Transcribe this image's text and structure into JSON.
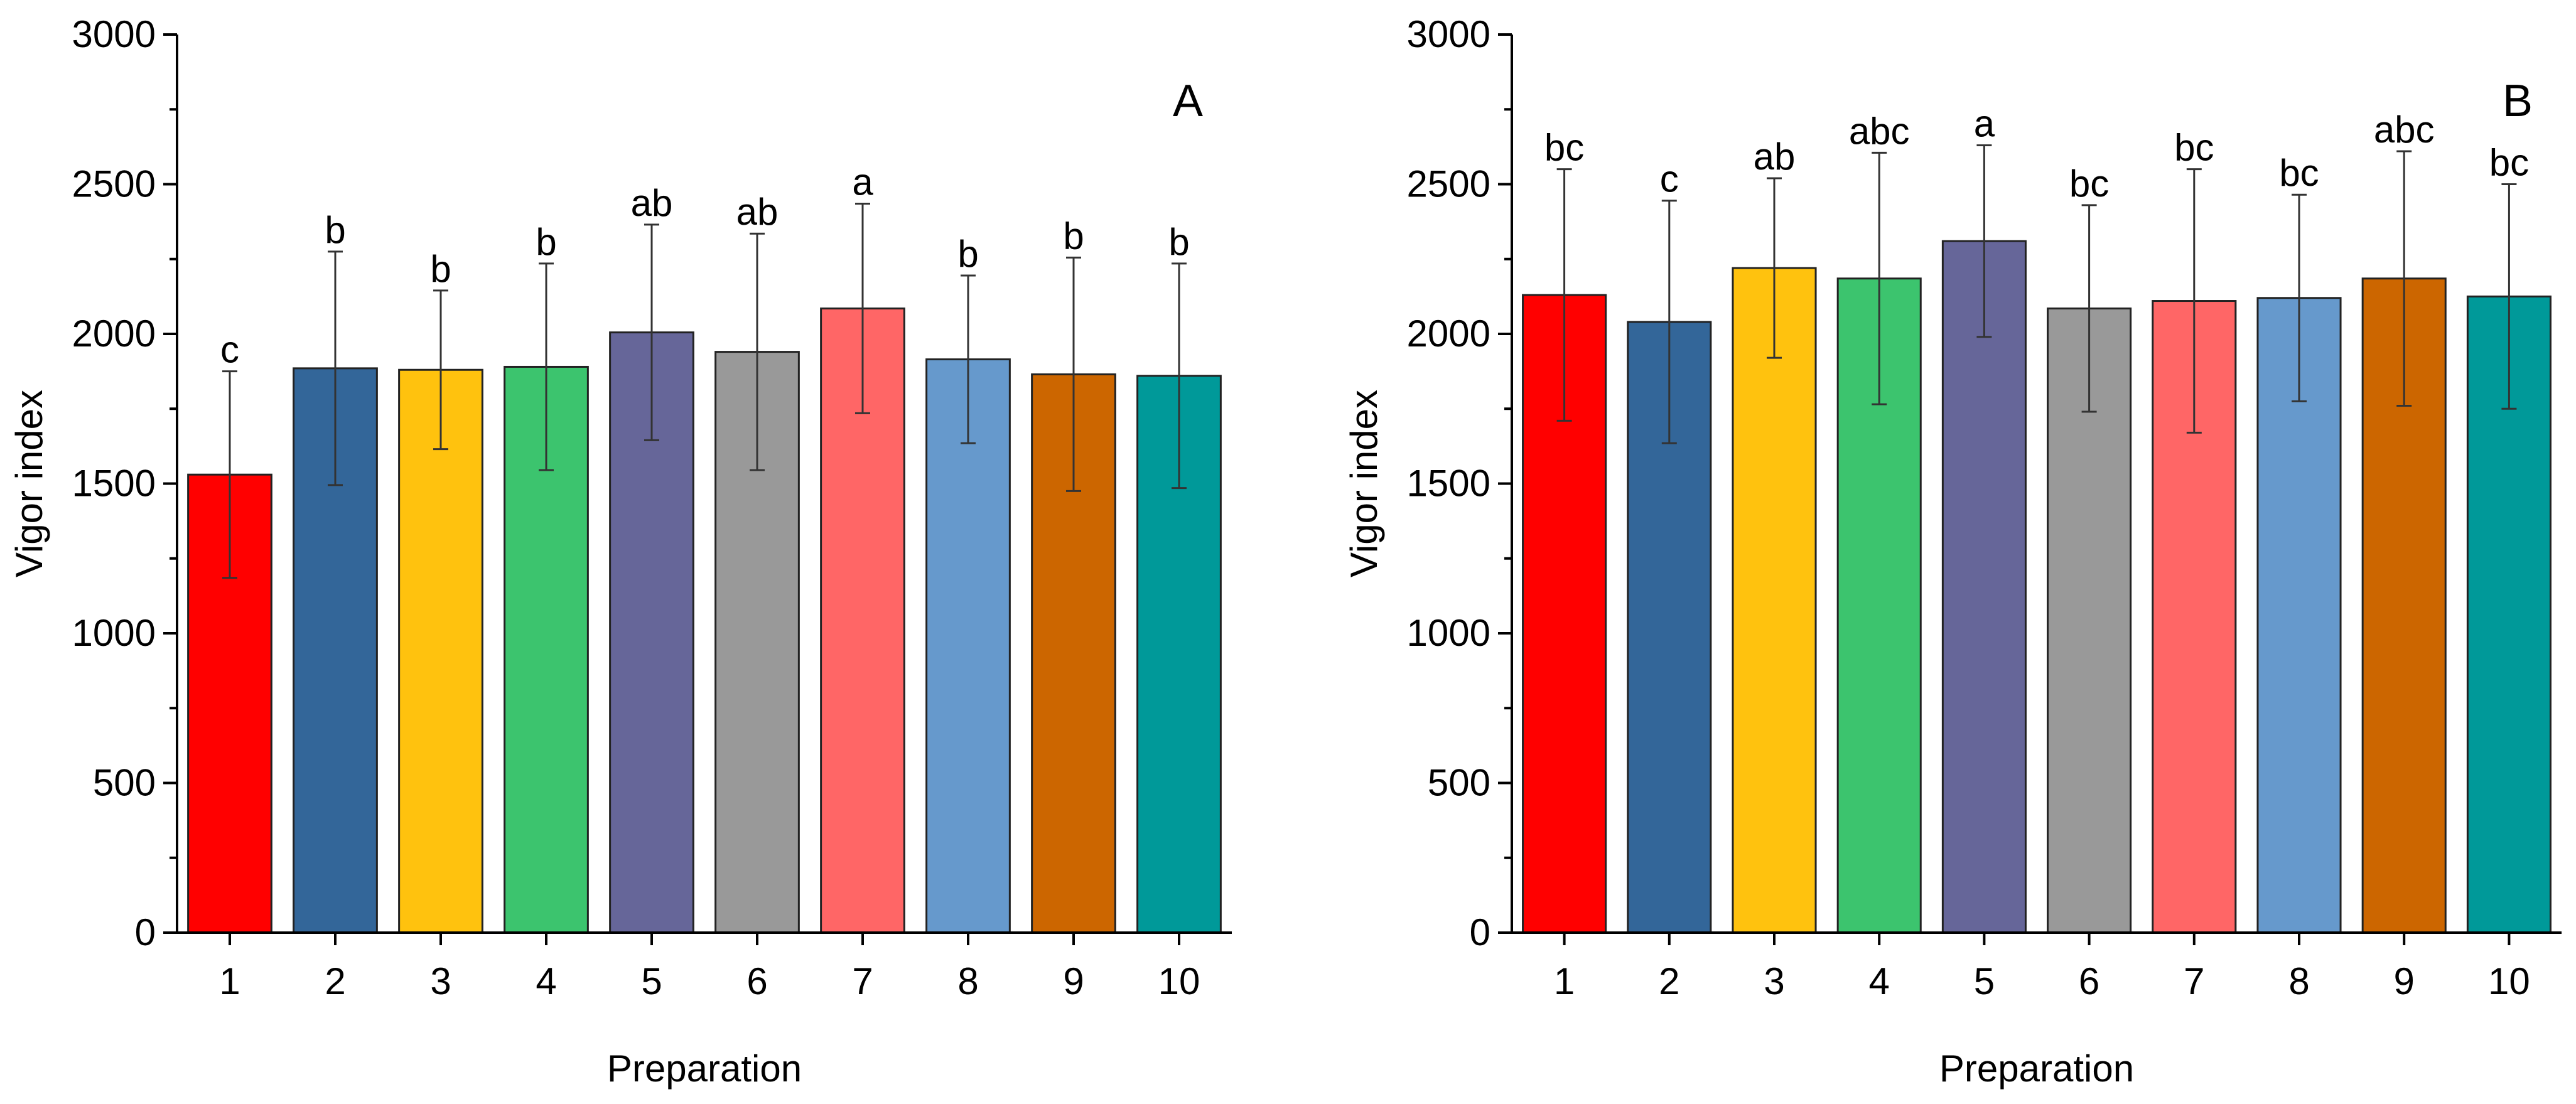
{
  "chart_data": [
    {
      "type": "bar",
      "panel_label": "A",
      "title": "",
      "xlabel": "Preparation",
      "ylabel": "Vigor index",
      "ylim": [
        0,
        3000
      ],
      "yticks": [
        0,
        500,
        1000,
        1500,
        2000,
        2500,
        3000
      ],
      "grid": false,
      "categories": [
        "1",
        "2",
        "3",
        "4",
        "5",
        "6",
        "7",
        "8",
        "9",
        "10"
      ],
      "values": [
        1530,
        1885,
        1880,
        1890,
        2005,
        1940,
        2085,
        1915,
        1865,
        1860
      ],
      "errors": [
        345,
        390,
        265,
        345,
        360,
        395,
        350,
        280,
        390,
        375
      ],
      "letters": [
        "c",
        "b",
        "b",
        "b",
        "ab",
        "ab",
        "a",
        "b",
        "b",
        "b"
      ],
      "colors": [
        "#ff0000",
        "#336699",
        "#ffc20e",
        "#3cc46e",
        "#666699",
        "#999999",
        "#ff6666",
        "#6699cc",
        "#cc6600",
        "#009999"
      ]
    },
    {
      "type": "bar",
      "panel_label": "B",
      "title": "",
      "xlabel": "Preparation",
      "ylabel": "Vigor index",
      "ylim": [
        0,
        3000
      ],
      "yticks": [
        0,
        500,
        1000,
        1500,
        2000,
        2500,
        3000
      ],
      "grid": false,
      "categories": [
        "1",
        "2",
        "3",
        "4",
        "5",
        "6",
        "7",
        "8",
        "9",
        "10"
      ],
      "values": [
        2130,
        2040,
        2220,
        2185,
        2310,
        2085,
        2110,
        2120,
        2185,
        2125
      ],
      "errors": [
        420,
        405,
        300,
        420,
        320,
        345,
        440,
        345,
        425,
        375
      ],
      "letters": [
        "bc",
        "c",
        "ab",
        "abc",
        "a",
        "bc",
        "bc",
        "bc",
        "abc",
        "bc"
      ],
      "colors": [
        "#ff0000",
        "#336699",
        "#ffc20e",
        "#3cc46e",
        "#666699",
        "#999999",
        "#ff6666",
        "#6699cc",
        "#cc6600",
        "#009999"
      ]
    }
  ]
}
